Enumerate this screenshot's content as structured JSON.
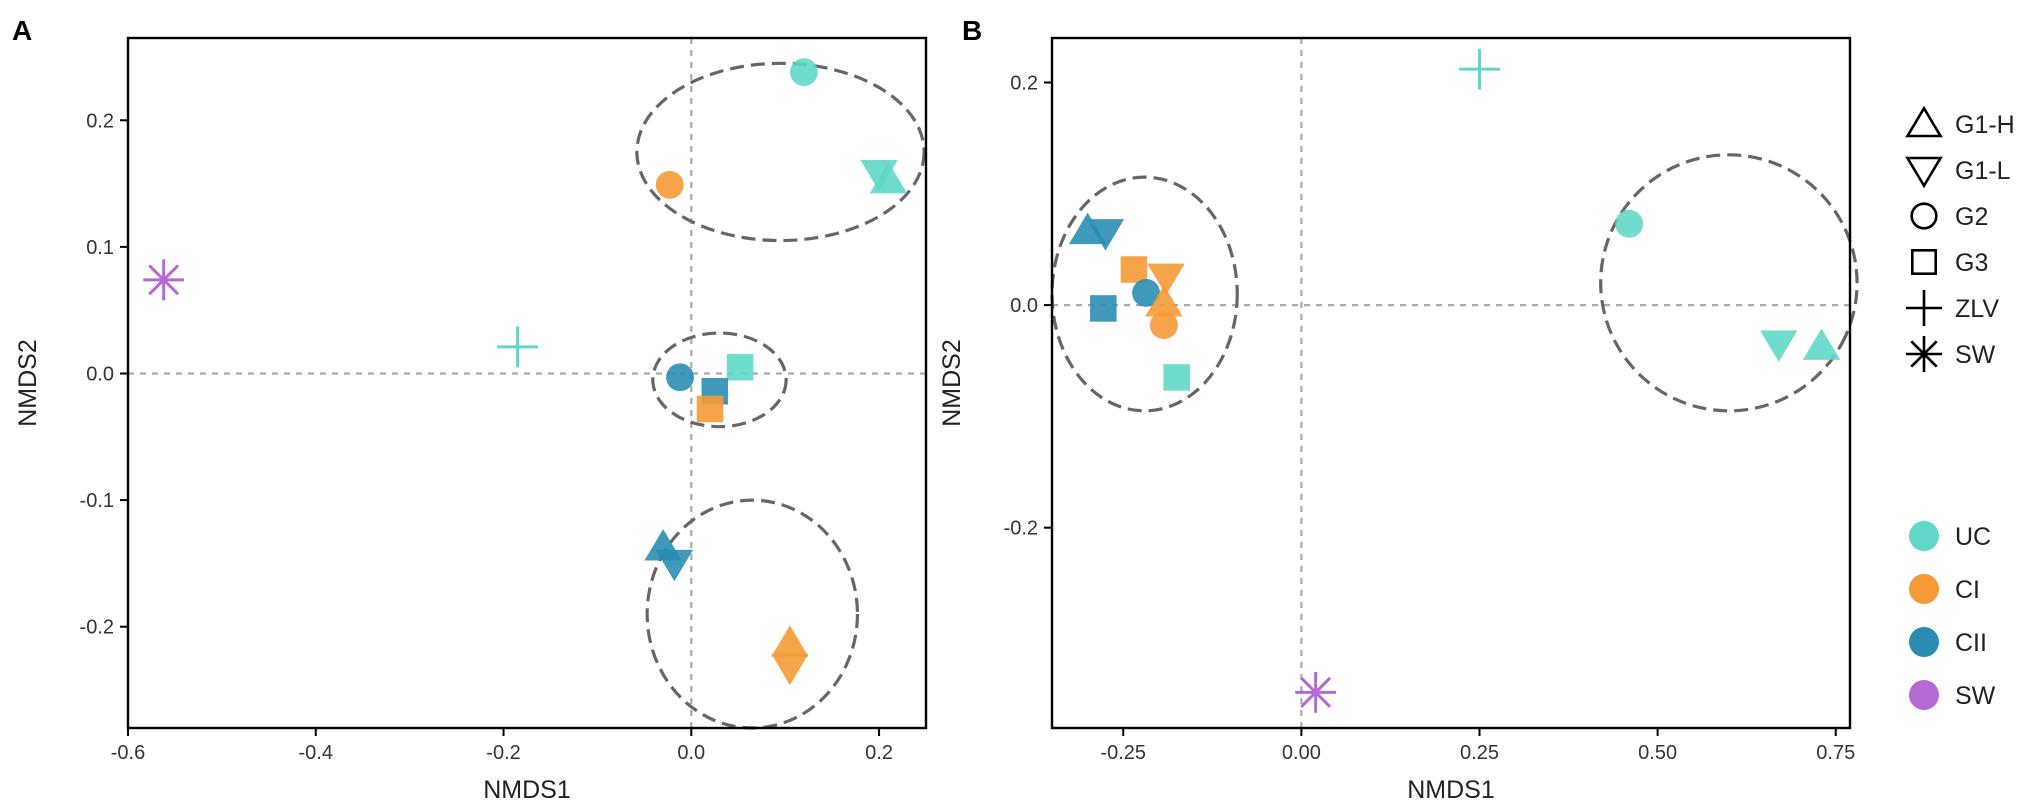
{
  "colors": {
    "UC": "#5fd8c8",
    "CI": "#f59a36",
    "CII": "#2b8db4",
    "SW": "#b569d2",
    "ellipse": "#666666",
    "refline": "#aaaaaa",
    "axis": "#000000"
  },
  "shape_legend": {
    "items": [
      {
        "label": "G1-H",
        "shape": "triangle-up"
      },
      {
        "label": "G1-L",
        "shape": "triangle-down"
      },
      {
        "label": "G2",
        "shape": "circle"
      },
      {
        "label": "G3",
        "shape": "square"
      },
      {
        "label": "ZLV",
        "shape": "plus"
      },
      {
        "label": "SW",
        "shape": "asterisk"
      }
    ]
  },
  "color_legend": {
    "items": [
      {
        "label": "UC",
        "group": "UC"
      },
      {
        "label": "CI",
        "group": "CI"
      },
      {
        "label": "CII",
        "group": "CII"
      },
      {
        "label": "SW",
        "group": "SW"
      }
    ]
  },
  "chart_data": [
    {
      "panel": "A",
      "type": "scatter",
      "xlabel": "NMDS1",
      "ylabel": "NMDS2",
      "xlim": [
        -0.6,
        0.25
      ],
      "ylim": [
        -0.28,
        0.265
      ],
      "xticks": [
        -0.6,
        -0.4,
        -0.2,
        0.0,
        0.2
      ],
      "xtick_labels": [
        "-0.6",
        "-0.4",
        "-0.2",
        "0.0",
        "0.2"
      ],
      "yticks": [
        -0.2,
        -0.1,
        0.0,
        0.1,
        0.2
      ],
      "ytick_labels": [
        "-0.2",
        "-0.1",
        "0.0",
        "0.1",
        "0.2"
      ],
      "points": [
        {
          "shape": "circle",
          "group": "UC",
          "x": 0.12,
          "y": 0.238
        },
        {
          "shape": "triangle-down",
          "group": "UC",
          "x": 0.2,
          "y": 0.158
        },
        {
          "shape": "triangle-up",
          "group": "UC",
          "x": 0.21,
          "y": 0.153
        },
        {
          "shape": "circle",
          "group": "CI",
          "x": -0.023,
          "y": 0.149
        },
        {
          "shape": "asterisk",
          "group": "SW",
          "x": -0.562,
          "y": 0.074
        },
        {
          "shape": "plus",
          "group": "UC",
          "x": -0.185,
          "y": 0.021
        },
        {
          "shape": "square",
          "group": "UC",
          "x": 0.052,
          "y": 0.005
        },
        {
          "shape": "circle",
          "group": "CII",
          "x": -0.012,
          "y": -0.003
        },
        {
          "shape": "square",
          "group": "CII",
          "x": 0.025,
          "y": -0.014
        },
        {
          "shape": "square",
          "group": "CI",
          "x": 0.02,
          "y": -0.028
        },
        {
          "shape": "triangle-up",
          "group": "CII",
          "x": -0.03,
          "y": -0.137
        },
        {
          "shape": "triangle-down",
          "group": "CII",
          "x": -0.018,
          "y": -0.15
        },
        {
          "shape": "triangle-up",
          "group": "CI",
          "x": 0.105,
          "y": -0.213
        },
        {
          "shape": "triangle-down",
          "group": "CI",
          "x": 0.105,
          "y": -0.232
        }
      ],
      "ellipses": [
        {
          "cx": 0.095,
          "cy": 0.175,
          "rx": 0.153,
          "ry": 0.07
        },
        {
          "cx": 0.03,
          "cy": -0.005,
          "rx": 0.071,
          "ry": 0.037
        },
        {
          "cx": 0.065,
          "cy": -0.19,
          "rx": 0.112,
          "ry": 0.09
        }
      ]
    },
    {
      "panel": "B",
      "type": "scatter",
      "xlabel": "NMDS1",
      "ylabel": "NMDS2",
      "xlim": [
        -0.35,
        0.77
      ],
      "ylim": [
        -0.38,
        0.24
      ],
      "xticks": [
        -0.25,
        0.0,
        0.25,
        0.5,
        0.75
      ],
      "xtick_labels": [
        "-0.25",
        "0.00",
        "0.25",
        "0.50",
        "0.75"
      ],
      "yticks": [
        -0.2,
        0.0,
        0.2
      ],
      "ytick_labels": [
        "-0.2",
        "0.0",
        "0.2"
      ],
      "points": [
        {
          "shape": "plus",
          "group": "UC",
          "x": 0.25,
          "y": 0.212
        },
        {
          "shape": "circle",
          "group": "UC",
          "x": 0.46,
          "y": 0.073
        },
        {
          "shape": "triangle-down",
          "group": "UC",
          "x": 0.67,
          "y": -0.035
        },
        {
          "shape": "triangle-up",
          "group": "UC",
          "x": 0.73,
          "y": -0.037
        },
        {
          "shape": "triangle-up",
          "group": "CII",
          "x": -0.3,
          "y": 0.067
        },
        {
          "shape": "triangle-down",
          "group": "CII",
          "x": -0.275,
          "y": 0.065
        },
        {
          "shape": "square",
          "group": "CI",
          "x": -0.235,
          "y": 0.032
        },
        {
          "shape": "triangle-down",
          "group": "CI",
          "x": -0.19,
          "y": 0.025
        },
        {
          "shape": "circle",
          "group": "CII",
          "x": -0.218,
          "y": 0.011
        },
        {
          "shape": "triangle-up",
          "group": "CI",
          "x": -0.193,
          "y": 0.002
        },
        {
          "shape": "square",
          "group": "CII",
          "x": -0.278,
          "y": -0.003
        },
        {
          "shape": "circle",
          "group": "CI",
          "x": -0.193,
          "y": -0.018
        },
        {
          "shape": "square",
          "group": "UC",
          "x": -0.175,
          "y": -0.065
        },
        {
          "shape": "asterisk",
          "group": "SW",
          "x": 0.02,
          "y": -0.348
        }
      ],
      "ellipses": [
        {
          "cx": -0.22,
          "cy": 0.01,
          "rx": 0.13,
          "ry": 0.105
        },
        {
          "cx": 0.6,
          "cy": 0.02,
          "rx": 0.18,
          "ry": 0.115,
          "rotate": 25
        }
      ]
    }
  ]
}
